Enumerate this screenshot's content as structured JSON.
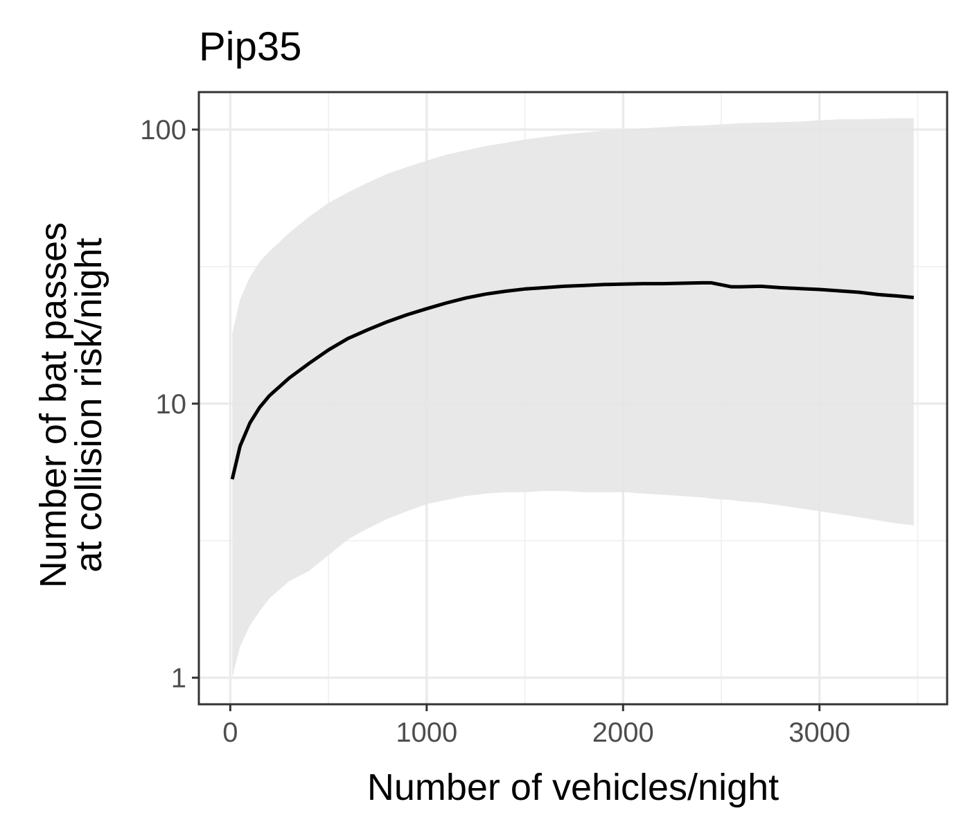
{
  "chart_data": {
    "type": "line",
    "title": "Pip35",
    "xlabel": "Number of vehicles/night",
    "ylabel_line1": "Number of bat passes",
    "ylabel_line2": "at collision risk/night",
    "y_scale": "log10",
    "xlim": [
      -160,
      3650
    ],
    "ylim": [
      0.8,
      137
    ],
    "x_ticks": [
      0,
      1000,
      2000,
      3000
    ],
    "x_tick_labels": [
      "0",
      "1000",
      "2000",
      "3000"
    ],
    "y_ticks": [
      1,
      10,
      100
    ],
    "y_tick_labels": [
      "1",
      "10",
      "100"
    ],
    "grid": true,
    "series": [
      {
        "x": [
          10,
          50,
          100,
          150,
          200,
          300,
          400,
          500,
          600,
          700,
          800,
          900,
          1000,
          1100,
          1200,
          1300,
          1400,
          1500,
          1600,
          1700,
          1800,
          1900,
          2000,
          2100,
          2200,
          2300,
          2400,
          2450,
          2550,
          2600,
          2700,
          2800,
          2900,
          3000,
          3100,
          3200,
          3300,
          3400,
          3480
        ],
        "y": [
          5.3,
          7.0,
          8.5,
          9.7,
          10.7,
          12.4,
          14.0,
          15.7,
          17.3,
          18.6,
          19.9,
          21.1,
          22.2,
          23.3,
          24.3,
          25.1,
          25.7,
          26.2,
          26.5,
          26.8,
          27.0,
          27.2,
          27.3,
          27.4,
          27.4,
          27.5,
          27.6,
          27.6,
          26.7,
          26.7,
          26.8,
          26.5,
          26.3,
          26.1,
          25.8,
          25.5,
          25.0,
          24.7,
          24.4
        ],
        "lower": [
          1.0,
          1.3,
          1.55,
          1.75,
          1.95,
          2.25,
          2.45,
          2.8,
          3.2,
          3.5,
          3.8,
          4.05,
          4.3,
          4.45,
          4.6,
          4.7,
          4.75,
          4.75,
          4.8,
          4.8,
          4.75,
          4.75,
          4.75,
          4.7,
          4.65,
          4.6,
          4.55,
          4.5,
          4.45,
          4.4,
          4.35,
          4.25,
          4.15,
          4.05,
          3.95,
          3.85,
          3.75,
          3.65,
          3.6
        ],
        "upper": [
          18,
          24,
          29,
          33,
          36,
          42,
          48,
          54,
          59,
          64,
          69,
          73,
          77,
          81,
          84,
          87,
          89.5,
          92,
          94,
          96,
          97.5,
          99,
          100,
          101,
          102,
          103,
          103.5,
          104,
          105,
          105.5,
          106,
          106.5,
          107,
          108,
          109,
          109,
          109.5,
          110,
          110
        ]
      }
    ]
  }
}
